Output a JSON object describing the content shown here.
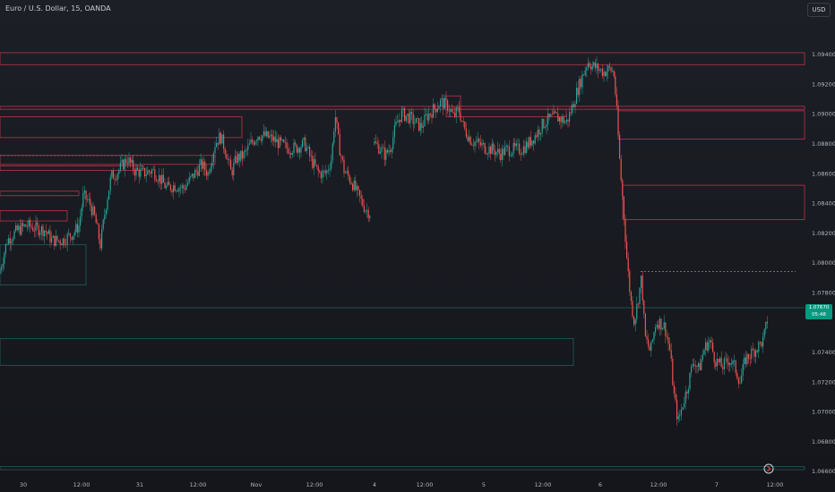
{
  "header": {
    "title": "Euro / U.S. Dollar, 15, OANDA",
    "currency_button": "USD"
  },
  "price_tag": {
    "price": "1.07670",
    "countdown": "05:48"
  },
  "colors": {
    "up": "#26a69a",
    "down": "#ef5350",
    "zone_red": "#c4304a",
    "zone_green": "#1f5f5a",
    "axis_text": "#b2b5be"
  },
  "chart_data": {
    "type": "candlestick",
    "instrument": "Euro / U.S. Dollar",
    "timeframe": "15",
    "source": "OANDA",
    "x_ticks": [
      "30",
      "12:00",
      "31",
      "12:00",
      "Nov",
      "12:00",
      "4",
      "12:00",
      "5",
      "12:00",
      "6",
      "12:00",
      "7",
      "12:00"
    ],
    "y_ticks": [
      "1.09400",
      "1.09200",
      "1.09000",
      "1.08800",
      "1.08600",
      "1.08400",
      "1.08200",
      "1.08000",
      "1.07800",
      "1.07400",
      "1.07200",
      "1.07000",
      "1.06800",
      "1.06600"
    ],
    "ylim": [
      1.0652,
      1.0968
    ],
    "current_price": 1.0767,
    "path": [
      [
        0,
        1.0795
      ],
      [
        8,
        1.0815
      ],
      [
        20,
        1.0822
      ],
      [
        30,
        1.0825
      ],
      [
        40,
        1.0823
      ],
      [
        50,
        1.0822
      ],
      [
        58,
        1.0815
      ],
      [
        70,
        1.0815
      ],
      [
        82,
        1.082
      ],
      [
        88,
        1.0825
      ],
      [
        93,
        1.0845
      ],
      [
        100,
        1.084
      ],
      [
        106,
        1.083
      ],
      [
        112,
        1.0812
      ],
      [
        118,
        1.0838
      ],
      [
        124,
        1.0858
      ],
      [
        130,
        1.086
      ],
      [
        136,
        1.0865
      ],
      [
        142,
        1.087
      ],
      [
        150,
        1.0862
      ],
      [
        160,
        1.086
      ],
      [
        170,
        1.0862
      ],
      [
        178,
        1.0857
      ],
      [
        186,
        1.085
      ],
      [
        195,
        1.0852
      ],
      [
        205,
        1.085
      ],
      [
        215,
        1.0858
      ],
      [
        225,
        1.0866
      ],
      [
        232,
        1.086
      ],
      [
        240,
        1.088
      ],
      [
        246,
        1.0885
      ],
      [
        252,
        1.0875
      ],
      [
        258,
        1.086
      ],
      [
        264,
        1.087
      ],
      [
        272,
        1.0872
      ],
      [
        280,
        1.088
      ],
      [
        288,
        1.0886
      ],
      [
        296,
        1.0885
      ],
      [
        304,
        1.0883
      ],
      [
        312,
        1.088
      ],
      [
        320,
        1.0877
      ],
      [
        330,
        1.0877
      ],
      [
        340,
        1.088
      ],
      [
        348,
        1.0868
      ],
      [
        356,
        1.086
      ],
      [
        364,
        1.086
      ],
      [
        370,
        1.087
      ],
      [
        374,
        1.09
      ],
      [
        378,
        1.088
      ],
      [
        384,
        1.0862
      ],
      [
        392,
        1.0855
      ],
      [
        400,
        1.0845
      ],
      [
        408,
        1.0836
      ],
      [
        414,
        1.0833
      ]
    ],
    "path_segment2": [
      [
        418,
        1.088
      ],
      [
        424,
        1.0877
      ],
      [
        430,
        1.0872
      ],
      [
        436,
        1.0878
      ],
      [
        442,
        1.0892
      ],
      [
        448,
        1.09
      ],
      [
        456,
        1.0898
      ],
      [
        464,
        1.0894
      ],
      [
        470,
        1.0891
      ],
      [
        476,
        1.0898
      ],
      [
        484,
        1.0903
      ],
      [
        492,
        1.0908
      ],
      [
        500,
        1.0905
      ],
      [
        506,
        1.0898
      ],
      [
        512,
        1.0903
      ],
      [
        518,
        1.089
      ],
      [
        526,
        1.0882
      ],
      [
        534,
        1.088
      ],
      [
        542,
        1.0877
      ],
      [
        550,
        1.0876
      ],
      [
        558,
        1.0873
      ],
      [
        566,
        1.0876
      ],
      [
        574,
        1.0876
      ],
      [
        582,
        1.0876
      ],
      [
        590,
        1.088
      ],
      [
        598,
        1.0886
      ],
      [
        606,
        1.0893
      ],
      [
        612,
        1.0896
      ],
      [
        620,
        1.0898
      ],
      [
        628,
        1.0896
      ],
      [
        632,
        1.0894
      ],
      [
        638,
        1.0903
      ],
      [
        644,
        1.0915
      ],
      [
        650,
        1.0925
      ],
      [
        656,
        1.0935
      ],
      [
        662,
        1.0932
      ],
      [
        668,
        1.093
      ],
      [
        674,
        1.0928
      ],
      [
        680,
        1.093
      ],
      [
        685,
        1.0928
      ],
      [
        688,
        1.0905
      ],
      [
        692,
        1.0865
      ],
      [
        696,
        1.0835
      ],
      [
        700,
        1.08
      ],
      [
        704,
        1.0775
      ],
      [
        708,
        1.076
      ],
      [
        712,
        1.0775
      ],
      [
        716,
        1.079
      ],
      [
        720,
        1.075
      ],
      [
        726,
        1.074
      ],
      [
        732,
        1.076
      ],
      [
        736,
        1.076
      ],
      [
        742,
        1.0757
      ],
      [
        748,
        1.074
      ],
      [
        752,
        1.0712
      ],
      [
        757,
        1.0693
      ],
      [
        762,
        1.0705
      ],
      [
        768,
        1.0718
      ],
      [
        774,
        1.0735
      ],
      [
        780,
        1.0728
      ],
      [
        786,
        1.0742
      ],
      [
        792,
        1.0748
      ],
      [
        798,
        1.0735
      ],
      [
        806,
        1.073
      ],
      [
        814,
        1.0735
      ],
      [
        820,
        1.073
      ],
      [
        826,
        1.072
      ],
      [
        832,
        1.0735
      ],
      [
        840,
        1.074
      ],
      [
        848,
        1.0745
      ],
      [
        852,
        1.0748
      ],
      [
        856,
        1.076
      ],
      [
        858,
        1.0767
      ]
    ],
    "zones_red": [
      {
        "x0": 0,
        "x1": 898,
        "y0": 1.0941,
        "y1": 1.0933
      },
      {
        "x0": 0,
        "x1": 898,
        "y0": 1.0905,
        "y1": 1.0903
      },
      {
        "x0": 0,
        "x1": 270,
        "y0": 1.0898,
        "y1": 1.0884
      },
      {
        "x0": 0,
        "x1": 240,
        "y0": 1.0872,
        "y1": 1.0866
      },
      {
        "x0": 0,
        "x1": 160,
        "y0": 1.0865,
        "y1": 1.0862
      },
      {
        "x0": 0,
        "x1": 88,
        "y0": 1.0848,
        "y1": 1.0845
      },
      {
        "x0": 0,
        "x1": 75,
        "y0": 1.0835,
        "y1": 1.0828
      },
      {
        "x0": 498,
        "x1": 514,
        "y0": 1.0912,
        "y1": 1.0898
      },
      {
        "x0": 514,
        "x1": 632,
        "y0": 1.0903,
        "y1": 1.0898
      },
      {
        "x0": 690,
        "x1": 898,
        "y0": 1.0902,
        "y1": 1.0883
      },
      {
        "x0": 695,
        "x1": 898,
        "y0": 1.0852,
        "y1": 1.0829
      }
    ],
    "zones_green": [
      {
        "x0": 0,
        "x1": 96,
        "y0": 1.0812,
        "y1": 1.0785
      },
      {
        "x0": 0,
        "x1": 640,
        "y0": 1.0749,
        "y1": 1.0731
      },
      {
        "x0": 0,
        "x1": 898,
        "y0": 1.0663,
        "y1": 1.0661
      }
    ],
    "dashed_lines": [
      {
        "x0": 0,
        "x1": 172,
        "y": 1.0872
      },
      {
        "x0": 715,
        "x1": 888,
        "y": 1.0794
      }
    ]
  }
}
